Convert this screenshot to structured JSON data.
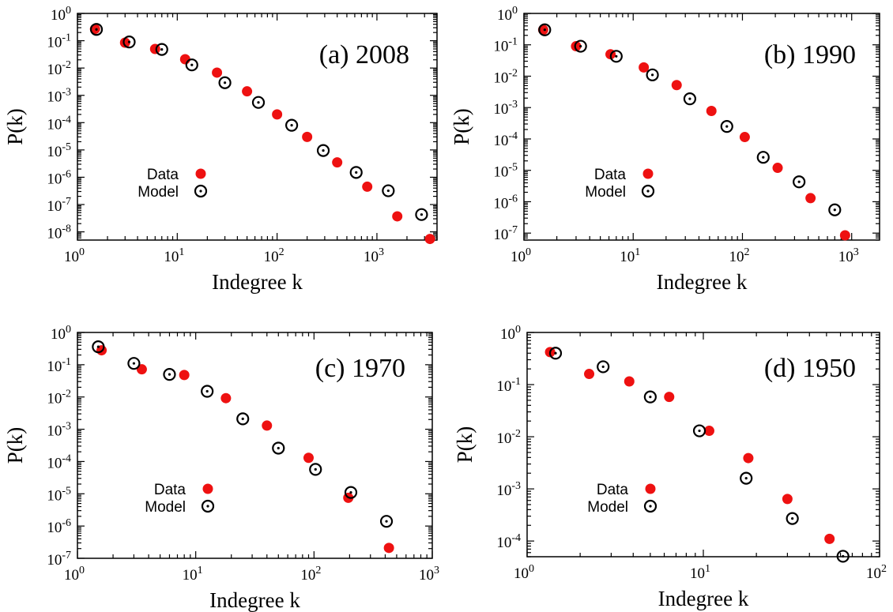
{
  "figure": {
    "colors": {
      "data_fill": "#ee1111",
      "model_stroke": "#000000",
      "axis": "#000000"
    }
  },
  "chart_data": [
    {
      "type": "scatter",
      "panel_label": "(a) 2008",
      "xlabel": "Indegree k",
      "ylabel": "P(k)",
      "xscale": "log",
      "yscale": "log",
      "xlim": [
        1,
        4000
      ],
      "ylim": [
        5e-09,
        1
      ],
      "x_ticks": [
        1,
        10,
        100,
        1000
      ],
      "x_tick_labels": [
        {
          "b": "10",
          "e": "0"
        },
        {
          "b": "10",
          "e": "1"
        },
        {
          "b": "10",
          "e": "2"
        },
        {
          "b": "10",
          "e": "3"
        }
      ],
      "y_ticks": [
        1e-08,
        1e-07,
        1e-06,
        1e-05,
        0.0001,
        0.001,
        0.01,
        0.1,
        1
      ],
      "y_tick_labels": [
        {
          "b": "10",
          "e": "-8"
        },
        {
          "b": "10",
          "e": "-7"
        },
        {
          "b": "10",
          "e": "-6"
        },
        {
          "b": "10",
          "e": "-5"
        },
        {
          "b": "10",
          "e": "-4"
        },
        {
          "b": "10",
          "e": "-3"
        },
        {
          "b": "10",
          "e": "-2"
        },
        {
          "b": "10",
          "e": "-1"
        },
        {
          "b": "10",
          "e": "0"
        }
      ],
      "legend": {
        "position": "left-middle",
        "entries": [
          "Data",
          "Model"
        ]
      },
      "series": [
        {
          "name": "Data",
          "marker": "filled-circle",
          "points": [
            [
              1.5,
              0.27
            ],
            [
              3,
              0.085
            ],
            [
              6,
              0.05
            ],
            [
              12,
              0.021
            ],
            [
              25,
              0.0068
            ],
            [
              50,
              0.0014
            ],
            [
              100,
              0.0002
            ],
            [
              200,
              3e-05
            ],
            [
              400,
              3.5e-06
            ],
            [
              800,
              4.5e-07
            ],
            [
              1600,
              3.7e-08
            ],
            [
              3400,
              5.5e-09
            ]
          ]
        },
        {
          "name": "Model",
          "marker": "dotted-circle",
          "points": [
            [
              1.55,
              0.26
            ],
            [
              3.3,
              0.09
            ],
            [
              7,
              0.048
            ],
            [
              14,
              0.013
            ],
            [
              30,
              0.0029
            ],
            [
              65,
              0.00055
            ],
            [
              140,
              8e-05
            ],
            [
              290,
              9.5e-06
            ],
            [
              620,
              1.5e-06
            ],
            [
              1300,
              3.2e-07
            ],
            [
              2800,
              4.3e-08
            ]
          ]
        }
      ]
    },
    {
      "type": "scatter",
      "panel_label": "(b) 1990",
      "xlabel": "Indegree k",
      "ylabel": "P(k)",
      "xscale": "log",
      "yscale": "log",
      "xlim": [
        1,
        1800
      ],
      "ylim": [
        6e-08,
        1
      ],
      "x_ticks": [
        1,
        10,
        100,
        1000
      ],
      "x_tick_labels": [
        {
          "b": "10",
          "e": "0"
        },
        {
          "b": "10",
          "e": "1"
        },
        {
          "b": "10",
          "e": "2"
        },
        {
          "b": "10",
          "e": "3"
        }
      ],
      "y_ticks": [
        1e-07,
        1e-06,
        1e-05,
        0.0001,
        0.001,
        0.01,
        0.1,
        1
      ],
      "y_tick_labels": [
        {
          "b": "10",
          "e": "-7"
        },
        {
          "b": "10",
          "e": "-6"
        },
        {
          "b": "10",
          "e": "-5"
        },
        {
          "b": "10",
          "e": "-4"
        },
        {
          "b": "10",
          "e": "-3"
        },
        {
          "b": "10",
          "e": "-2"
        },
        {
          "b": "10",
          "e": "-1"
        },
        {
          "b": "10",
          "e": "0"
        }
      ],
      "legend": {
        "position": "left-middle",
        "entries": [
          "Data",
          "Model"
        ]
      },
      "series": [
        {
          "name": "Data",
          "marker": "filled-circle",
          "points": [
            [
              1.5,
              0.3
            ],
            [
              3,
              0.09
            ],
            [
              6.2,
              0.05
            ],
            [
              12.5,
              0.019
            ],
            [
              25,
              0.0052
            ],
            [
              52,
              0.00078
            ],
            [
              105,
              0.000115
            ],
            [
              210,
              1.2e-05
            ],
            [
              420,
              1.3e-06
            ],
            [
              870,
              8.5e-08
            ]
          ]
        },
        {
          "name": "Model",
          "marker": "dotted-circle",
          "points": [
            [
              1.55,
              0.3
            ],
            [
              3.3,
              0.09
            ],
            [
              7,
              0.043
            ],
            [
              15,
              0.011
            ],
            [
              33,
              0.0019
            ],
            [
              72,
              0.00025
            ],
            [
              155,
              2.6e-05
            ],
            [
              330,
              4.3e-06
            ],
            [
              700,
              5.5e-07
            ]
          ]
        }
      ]
    },
    {
      "type": "scatter",
      "panel_label": "(c) 1970",
      "xlabel": "Indegree k",
      "ylabel": "P(k)",
      "xscale": "log",
      "yscale": "log",
      "xlim": [
        1,
        1000
      ],
      "ylim": [
        1e-07,
        1
      ],
      "x_ticks": [
        1,
        10,
        100,
        1000
      ],
      "x_tick_labels": [
        {
          "b": "10",
          "e": "0"
        },
        {
          "b": "10",
          "e": "1"
        },
        {
          "b": "10",
          "e": "2"
        },
        {
          "b": "10",
          "e": "3"
        }
      ],
      "y_ticks": [
        1e-07,
        1e-06,
        1e-05,
        0.0001,
        0.001,
        0.01,
        0.1,
        1
      ],
      "y_tick_labels": [
        {
          "b": "10",
          "e": "-7"
        },
        {
          "b": "10",
          "e": "-6"
        },
        {
          "b": "10",
          "e": "-5"
        },
        {
          "b": "10",
          "e": "-4"
        },
        {
          "b": "10",
          "e": "-3"
        },
        {
          "b": "10",
          "e": "-2"
        },
        {
          "b": "10",
          "e": "-1"
        },
        {
          "b": "10",
          "e": "0"
        }
      ],
      "legend": {
        "position": "left-middle",
        "entries": [
          "Data",
          "Model"
        ]
      },
      "series": [
        {
          "name": "Data",
          "marker": "filled-circle",
          "points": [
            [
              1.6,
              0.28
            ],
            [
              3.5,
              0.072
            ],
            [
              8,
              0.048
            ],
            [
              18,
              0.0092
            ],
            [
              40,
              0.0013
            ],
            [
              90,
              0.00013
            ],
            [
              195,
              7.5e-06
            ],
            [
              430,
              2.1e-07
            ]
          ]
        },
        {
          "name": "Model",
          "marker": "dotted-circle",
          "points": [
            [
              1.5,
              0.36
            ],
            [
              3,
              0.11
            ],
            [
              6,
              0.05
            ],
            [
              12.5,
              0.015
            ],
            [
              25,
              0.0021
            ],
            [
              50,
              0.00026
            ],
            [
              103,
              5.7e-05
            ],
            [
              205,
              1.1e-05
            ],
            [
              410,
              1.4e-06
            ]
          ]
        }
      ]
    },
    {
      "type": "scatter",
      "panel_label": "(d) 1950",
      "xlabel": "Indegree k",
      "ylabel": "P(k)",
      "xscale": "log",
      "yscale": "log",
      "xlim": [
        1,
        100
      ],
      "ylim": [
        5e-05,
        1
      ],
      "x_ticks": [
        1,
        10,
        100
      ],
      "x_tick_labels": [
        {
          "b": "10",
          "e": "0"
        },
        {
          "b": "10",
          "e": "1"
        },
        {
          "b": "10",
          "e": "2"
        }
      ],
      "y_ticks": [
        0.0001,
        0.001,
        0.01,
        0.1,
        1
      ],
      "y_tick_labels": [
        {
          "b": "10",
          "e": "-4"
        },
        {
          "b": "10",
          "e": "-3"
        },
        {
          "b": "10",
          "e": "-2"
        },
        {
          "b": "10",
          "e": "-1"
        },
        {
          "b": "10",
          "e": "0"
        }
      ],
      "legend": {
        "position": "left-lower",
        "entries": [
          "Data",
          "Model"
        ]
      },
      "series": [
        {
          "name": "Data",
          "marker": "filled-circle",
          "points": [
            [
              1.35,
              0.42
            ],
            [
              2.25,
              0.16
            ],
            [
              3.8,
              0.115
            ],
            [
              6.4,
              0.058
            ],
            [
              10.8,
              0.013
            ],
            [
              18,
              0.0039
            ],
            [
              30,
              0.00064
            ],
            [
              52,
              0.00011
            ]
          ]
        },
        {
          "name": "Model",
          "marker": "dotted-circle",
          "points": [
            [
              1.45,
              0.4
            ],
            [
              2.7,
              0.22
            ],
            [
              5,
              0.058
            ],
            [
              9.5,
              0.013
            ],
            [
              17.5,
              0.0016
            ],
            [
              32,
              0.00027
            ],
            [
              62,
              5.1e-05
            ]
          ]
        }
      ]
    }
  ]
}
